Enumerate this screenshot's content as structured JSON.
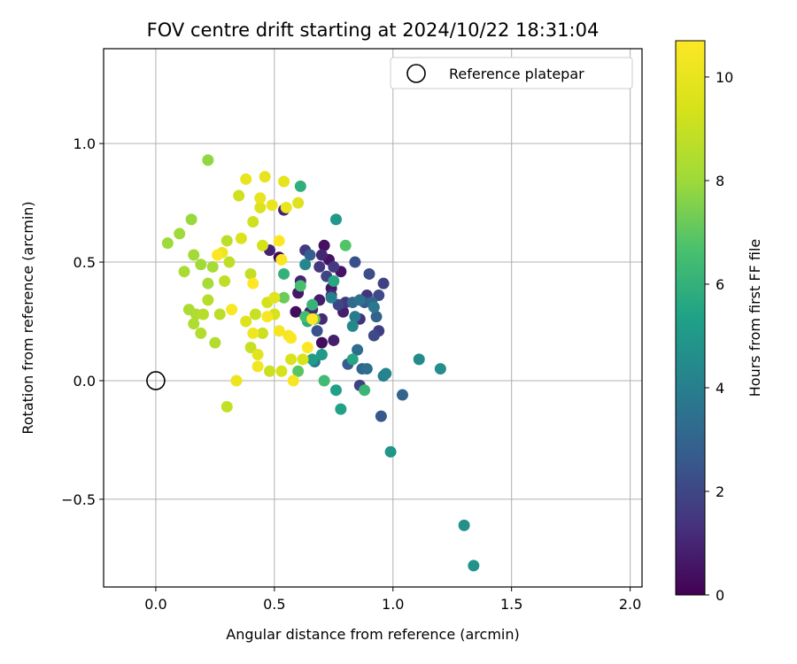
{
  "chart_data": {
    "type": "scatter",
    "title": "FOV centre drift starting at 2024/10/22 18:31:04",
    "xlabel": "Angular distance from reference (arcmin)",
    "ylabel": "Rotation from reference (arcmin)",
    "xlim": [
      -0.22,
      2.05
    ],
    "ylim": [
      -0.87,
      1.4
    ],
    "xticks": [
      0.0,
      0.5,
      1.0,
      1.5,
      2.0
    ],
    "xtick_labels": [
      "0.0",
      "0.5",
      "1.0",
      "1.5",
      "2.0"
    ],
    "yticks": [
      -0.5,
      0.0,
      0.5,
      1.0
    ],
    "ytick_labels": [
      "−0.5",
      "0.0",
      "0.5",
      "1.0"
    ],
    "grid": true,
    "legend_position": "top-right",
    "legend_label": "Reference platepar",
    "reference_point": {
      "x": 0.0,
      "y": 0.0
    },
    "colorbar": {
      "label": "Hours from first FF file",
      "colormap": "viridis",
      "range": [
        0,
        10.7
      ],
      "ticks": [
        0,
        2,
        4,
        6,
        8,
        10
      ],
      "tick_labels": [
        "0",
        "2",
        "4",
        "6",
        "8",
        "10"
      ]
    },
    "points": [
      {
        "x": 0.52,
        "y": 0.52,
        "h": 0.2
      },
      {
        "x": 0.59,
        "y": 0.29,
        "h": 0.3
      },
      {
        "x": 0.7,
        "y": 0.16,
        "h": 0.3
      },
      {
        "x": 0.71,
        "y": 0.57,
        "h": 0.4
      },
      {
        "x": 0.73,
        "y": 0.51,
        "h": 0.5
      },
      {
        "x": 0.78,
        "y": 0.46,
        "h": 0.5
      },
      {
        "x": 0.6,
        "y": 0.37,
        "h": 0.6
      },
      {
        "x": 0.74,
        "y": 0.39,
        "h": 0.6
      },
      {
        "x": 0.69,
        "y": 0.34,
        "h": 0.7
      },
      {
        "x": 0.65,
        "y": 0.29,
        "h": 0.7
      },
      {
        "x": 0.75,
        "y": 0.17,
        "h": 0.8
      },
      {
        "x": 0.79,
        "y": 0.29,
        "h": 0.8
      },
      {
        "x": 0.54,
        "y": 0.72,
        "h": 0.9
      },
      {
        "x": 0.48,
        "y": 0.55,
        "h": 0.9
      },
      {
        "x": 0.61,
        "y": 0.42,
        "h": 1.0
      },
      {
        "x": 0.7,
        "y": 0.53,
        "h": 1.0
      },
      {
        "x": 0.66,
        "y": 0.3,
        "h": 1.1
      },
      {
        "x": 0.7,
        "y": 0.26,
        "h": 1.1
      },
      {
        "x": 0.74,
        "y": 0.36,
        "h": 1.2
      },
      {
        "x": 0.86,
        "y": 0.26,
        "h": 1.3
      },
      {
        "x": 0.89,
        "y": 0.36,
        "h": 1.4
      },
      {
        "x": 0.8,
        "y": 0.33,
        "h": 1.5
      },
      {
        "x": 0.69,
        "y": 0.48,
        "h": 1.5
      },
      {
        "x": 0.63,
        "y": 0.55,
        "h": 1.6
      },
      {
        "x": 0.75,
        "y": 0.48,
        "h": 1.6
      },
      {
        "x": 0.94,
        "y": 0.21,
        "h": 1.7
      },
      {
        "x": 0.86,
        "y": -0.02,
        "h": 1.8
      },
      {
        "x": 0.96,
        "y": 0.41,
        "h": 1.8
      },
      {
        "x": 0.72,
        "y": 0.44,
        "h": 1.9
      },
      {
        "x": 0.77,
        "y": 0.32,
        "h": 2.0
      },
      {
        "x": 0.92,
        "y": 0.19,
        "h": 2.1
      },
      {
        "x": 0.94,
        "y": 0.36,
        "h": 2.1
      },
      {
        "x": 0.9,
        "y": 0.45,
        "h": 2.2
      },
      {
        "x": 0.84,
        "y": 0.5,
        "h": 2.3
      },
      {
        "x": 0.68,
        "y": 0.21,
        "h": 2.4
      },
      {
        "x": 0.95,
        "y": -0.15,
        "h": 2.5
      },
      {
        "x": 0.88,
        "y": 0.33,
        "h": 2.6
      },
      {
        "x": 0.81,
        "y": 0.07,
        "h": 2.7
      },
      {
        "x": 0.65,
        "y": 0.53,
        "h": 2.8
      },
      {
        "x": 0.93,
        "y": 0.27,
        "h": 2.9
      },
      {
        "x": 0.87,
        "y": 0.05,
        "h": 3.0
      },
      {
        "x": 1.04,
        "y": -0.06,
        "h": 3.0
      },
      {
        "x": 0.91,
        "y": 0.33,
        "h": 3.1
      },
      {
        "x": 0.83,
        "y": 0.33,
        "h": 3.2
      },
      {
        "x": 0.85,
        "y": 0.13,
        "h": 3.3
      },
      {
        "x": 0.89,
        "y": 0.05,
        "h": 3.4
      },
      {
        "x": 0.86,
        "y": 0.34,
        "h": 3.6
      },
      {
        "x": 0.92,
        "y": 0.31,
        "h": 3.7
      },
      {
        "x": 0.67,
        "y": 0.08,
        "h": 3.8
      },
      {
        "x": 0.84,
        "y": 0.27,
        "h": 3.9
      },
      {
        "x": 0.74,
        "y": 0.35,
        "h": 4.0
      },
      {
        "x": 0.96,
        "y": 0.02,
        "h": 4.1
      },
      {
        "x": 0.97,
        "y": 0.03,
        "h": 4.2
      },
      {
        "x": 0.63,
        "y": 0.49,
        "h": 4.3
      },
      {
        "x": 0.83,
        "y": 0.23,
        "h": 4.4
      },
      {
        "x": 1.11,
        "y": 0.09,
        "h": 4.5
      },
      {
        "x": 1.2,
        "y": 0.05,
        "h": 4.6
      },
      {
        "x": 1.3,
        "y": -0.61,
        "h": 4.7
      },
      {
        "x": 1.34,
        "y": -0.78,
        "h": 4.8
      },
      {
        "x": 0.99,
        "y": -0.3,
        "h": 4.9
      },
      {
        "x": 0.76,
        "y": 0.68,
        "h": 5.0
      },
      {
        "x": 0.7,
        "y": 0.11,
        "h": 5.1
      },
      {
        "x": 0.66,
        "y": 0.09,
        "h": 5.2
      },
      {
        "x": 0.76,
        "y": -0.04,
        "h": 5.3
      },
      {
        "x": 0.78,
        "y": -0.12,
        "h": 5.4
      },
      {
        "x": 0.83,
        "y": 0.09,
        "h": 5.5
      },
      {
        "x": 0.75,
        "y": 0.42,
        "h": 5.6
      },
      {
        "x": 0.64,
        "y": 0.25,
        "h": 5.8
      },
      {
        "x": 0.61,
        "y": 0.82,
        "h": 5.9
      },
      {
        "x": 0.54,
        "y": 0.45,
        "h": 6.0
      },
      {
        "x": 0.66,
        "y": 0.32,
        "h": 6.1
      },
      {
        "x": 0.88,
        "y": -0.04,
        "h": 6.2
      },
      {
        "x": 0.71,
        "y": 0.0,
        "h": 6.4
      },
      {
        "x": 0.63,
        "y": 0.27,
        "h": 6.5
      },
      {
        "x": 0.61,
        "y": 0.4,
        "h": 6.6
      },
      {
        "x": 0.8,
        "y": 0.57,
        "h": 6.8
      },
      {
        "x": 0.6,
        "y": 0.04,
        "h": 6.9
      },
      {
        "x": 0.67,
        "y": 0.26,
        "h": 7.0
      },
      {
        "x": 0.54,
        "y": 0.35,
        "h": 7.2
      },
      {
        "x": 0.22,
        "y": 0.93,
        "h": 7.8
      },
      {
        "x": 0.15,
        "y": 0.68,
        "h": 7.9
      },
      {
        "x": 0.05,
        "y": 0.58,
        "h": 8.0
      },
      {
        "x": 0.1,
        "y": 0.62,
        "h": 8.0
      },
      {
        "x": 0.16,
        "y": 0.53,
        "h": 8.1
      },
      {
        "x": 0.19,
        "y": 0.49,
        "h": 8.1
      },
      {
        "x": 0.22,
        "y": 0.41,
        "h": 8.2
      },
      {
        "x": 0.24,
        "y": 0.48,
        "h": 8.2
      },
      {
        "x": 0.12,
        "y": 0.46,
        "h": 8.3
      },
      {
        "x": 0.14,
        "y": 0.3,
        "h": 8.3
      },
      {
        "x": 0.17,
        "y": 0.28,
        "h": 8.4
      },
      {
        "x": 0.16,
        "y": 0.24,
        "h": 8.4
      },
      {
        "x": 0.19,
        "y": 0.2,
        "h": 8.5
      },
      {
        "x": 0.25,
        "y": 0.16,
        "h": 8.5
      },
      {
        "x": 0.2,
        "y": 0.28,
        "h": 8.6
      },
      {
        "x": 0.22,
        "y": 0.34,
        "h": 8.6
      },
      {
        "x": 0.27,
        "y": 0.28,
        "h": 8.7
      },
      {
        "x": 0.3,
        "y": 0.59,
        "h": 8.7
      },
      {
        "x": 0.31,
        "y": 0.5,
        "h": 8.8
      },
      {
        "x": 0.29,
        "y": 0.42,
        "h": 8.8
      },
      {
        "x": 0.3,
        "y": -0.11,
        "h": 8.9
      },
      {
        "x": 0.4,
        "y": 0.45,
        "h": 8.9
      },
      {
        "x": 0.42,
        "y": 0.28,
        "h": 9.0
      },
      {
        "x": 0.4,
        "y": 0.14,
        "h": 9.0
      },
      {
        "x": 0.45,
        "y": 0.2,
        "h": 9.1
      },
      {
        "x": 0.48,
        "y": 0.04,
        "h": 9.1
      },
      {
        "x": 0.35,
        "y": 0.78,
        "h": 9.2
      },
      {
        "x": 0.41,
        "y": 0.67,
        "h": 9.2
      },
      {
        "x": 0.45,
        "y": 0.57,
        "h": 9.3
      },
      {
        "x": 0.47,
        "y": 0.33,
        "h": 9.3
      },
      {
        "x": 0.5,
        "y": 0.28,
        "h": 9.4
      },
      {
        "x": 0.53,
        "y": 0.04,
        "h": 9.4
      },
      {
        "x": 0.57,
        "y": 0.09,
        "h": 9.5
      },
      {
        "x": 0.62,
        "y": 0.09,
        "h": 9.5
      },
      {
        "x": 0.36,
        "y": 0.6,
        "h": 9.6
      },
      {
        "x": 0.44,
        "y": 0.73,
        "h": 9.6
      },
      {
        "x": 0.6,
        "y": 0.75,
        "h": 9.7
      },
      {
        "x": 0.38,
        "y": 0.25,
        "h": 9.7
      },
      {
        "x": 0.43,
        "y": 0.11,
        "h": 9.8
      },
      {
        "x": 0.5,
        "y": 0.35,
        "h": 9.8
      },
      {
        "x": 0.46,
        "y": 0.86,
        "h": 9.9
      },
      {
        "x": 0.54,
        "y": 0.84,
        "h": 9.9
      },
      {
        "x": 0.38,
        "y": 0.85,
        "h": 10.0
      },
      {
        "x": 0.44,
        "y": 0.77,
        "h": 10.0
      },
      {
        "x": 0.49,
        "y": 0.74,
        "h": 10.1
      },
      {
        "x": 0.55,
        "y": 0.73,
        "h": 10.1
      },
      {
        "x": 0.28,
        "y": 0.54,
        "h": 10.2
      },
      {
        "x": 0.34,
        "y": 0.0,
        "h": 10.2
      },
      {
        "x": 0.41,
        "y": 0.2,
        "h": 10.3
      },
      {
        "x": 0.43,
        "y": 0.06,
        "h": 10.3
      },
      {
        "x": 0.52,
        "y": 0.21,
        "h": 10.4
      },
      {
        "x": 0.56,
        "y": 0.19,
        "h": 10.4
      },
      {
        "x": 0.58,
        "y": 0.0,
        "h": 10.5
      },
      {
        "x": 0.47,
        "y": 0.27,
        "h": 10.5
      },
      {
        "x": 0.53,
        "y": 0.51,
        "h": 10.6
      },
      {
        "x": 0.57,
        "y": 0.18,
        "h": 10.6
      },
      {
        "x": 0.32,
        "y": 0.3,
        "h": 10.6
      },
      {
        "x": 0.26,
        "y": 0.53,
        "h": 10.7
      },
      {
        "x": 0.64,
        "y": 0.14,
        "h": 10.7
      },
      {
        "x": 0.66,
        "y": 0.26,
        "h": 10.7
      },
      {
        "x": 0.41,
        "y": 0.41,
        "h": 10.7
      },
      {
        "x": 0.52,
        "y": 0.59,
        "h": 10.7
      }
    ]
  }
}
